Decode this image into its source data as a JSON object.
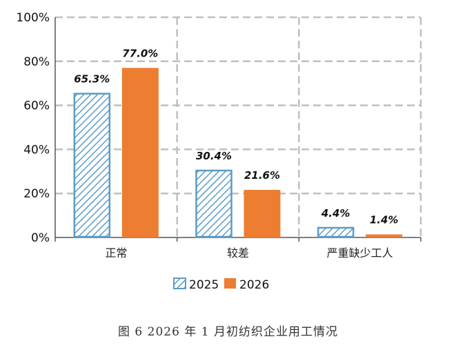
{
  "chart_data": {
    "type": "bar",
    "categories": [
      "正常",
      "较差",
      "严重缺少工人"
    ],
    "series": [
      {
        "name": "2025",
        "values": [
          65.3,
          30.4,
          4.4
        ],
        "labels": [
          "65.3%",
          "30.4%",
          "4.4%"
        ]
      },
      {
        "name": "2026",
        "values": [
          77.0,
          21.6,
          1.4
        ],
        "labels": [
          "77.0%",
          "21.6%",
          "1.4%"
        ]
      }
    ],
    "y_ticks": [
      "0%",
      "20%",
      "40%",
      "60%",
      "80%",
      "100%"
    ],
    "ylim": [
      0,
      100
    ],
    "grid": true,
    "legend_position": "bottom",
    "caption": "图 6   2026 年 1 月初纺织企业用工情况"
  },
  "colors": {
    "series_2025_stroke": "#5b9bc7",
    "series_2026_fill": "#ed7d31",
    "grid": "#bfbfbf",
    "axis": "#555555"
  }
}
